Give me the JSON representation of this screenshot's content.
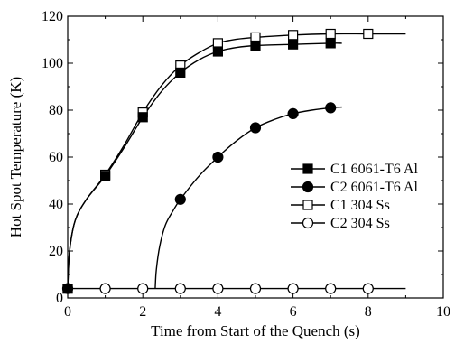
{
  "chart_data": {
    "type": "line",
    "xlabel": "Time from Start of the Quench (s)",
    "ylabel": "Hot Spot Temperature (K)",
    "xlim": [
      0,
      10
    ],
    "ylim": [
      0,
      120
    ],
    "xticks": [
      0,
      2,
      4,
      6,
      8,
      10
    ],
    "yticks": [
      0,
      20,
      40,
      60,
      80,
      100,
      120
    ],
    "grid": false,
    "legend_position": "right-middle",
    "series": [
      {
        "name": "C1 6061-T6 Al",
        "marker": "filled-square",
        "points": [
          [
            0,
            4
          ],
          [
            1,
            52
          ],
          [
            2,
            77
          ],
          [
            3,
            96
          ],
          [
            4,
            105
          ],
          [
            5,
            107.5
          ],
          [
            6,
            108
          ],
          [
            7,
            108.5
          ]
        ],
        "curve": [
          [
            0,
            4
          ],
          [
            0.05,
            20
          ],
          [
            0.2,
            33
          ],
          [
            0.5,
            42
          ],
          [
            1,
            52
          ],
          [
            1.5,
            64
          ],
          [
            2,
            77
          ],
          [
            2.5,
            88
          ],
          [
            3,
            96
          ],
          [
            3.5,
            101.5
          ],
          [
            4,
            105
          ],
          [
            4.5,
            106.7
          ],
          [
            5,
            107.5
          ],
          [
            6,
            108
          ],
          [
            7,
            108.5
          ],
          [
            7.3,
            108.5
          ]
        ]
      },
      {
        "name": "C2 6061-T6 Al",
        "marker": "filled-circle",
        "points": [
          [
            3,
            42
          ],
          [
            4,
            60
          ],
          [
            5,
            72.5
          ],
          [
            6,
            78.5
          ],
          [
            7,
            81
          ]
        ],
        "curve": [
          [
            2.33,
            4
          ],
          [
            2.36,
            12
          ],
          [
            2.45,
            22
          ],
          [
            2.6,
            31
          ],
          [
            2.8,
            37
          ],
          [
            3,
            42
          ],
          [
            3.5,
            52
          ],
          [
            4,
            60
          ],
          [
            4.5,
            67
          ],
          [
            5,
            72.5
          ],
          [
            5.5,
            76
          ],
          [
            6,
            78.5
          ],
          [
            6.5,
            80
          ],
          [
            7,
            81
          ],
          [
            7.3,
            81.3
          ]
        ]
      },
      {
        "name": "C1 304 Ss",
        "marker": "open-square",
        "points": [
          [
            0,
            4
          ],
          [
            1,
            52.5
          ],
          [
            2,
            79
          ],
          [
            3,
            99
          ],
          [
            4,
            108.5
          ],
          [
            5,
            111
          ],
          [
            6,
            112
          ],
          [
            7,
            112.5
          ],
          [
            8,
            112.5
          ]
        ],
        "curve": [
          [
            0,
            4
          ],
          [
            0.05,
            20
          ],
          [
            0.2,
            33
          ],
          [
            0.5,
            42
          ],
          [
            1,
            52.5
          ],
          [
            1.5,
            65
          ],
          [
            2,
            79
          ],
          [
            2.5,
            90.5
          ],
          [
            3,
            99
          ],
          [
            3.5,
            104.5
          ],
          [
            4,
            108.5
          ],
          [
            4.5,
            110.2
          ],
          [
            5,
            111
          ],
          [
            6,
            112
          ],
          [
            7,
            112.5
          ],
          [
            8,
            112.5
          ],
          [
            9,
            112.5
          ]
        ]
      },
      {
        "name": "C2 304 Ss",
        "marker": "open-circle",
        "points": [
          [
            0,
            4
          ],
          [
            1,
            4
          ],
          [
            2,
            4
          ],
          [
            3,
            4
          ],
          [
            4,
            4
          ],
          [
            5,
            4
          ],
          [
            6,
            4
          ],
          [
            7,
            4
          ],
          [
            8,
            4
          ]
        ],
        "curve": [
          [
            0,
            4
          ],
          [
            9,
            4
          ]
        ]
      }
    ]
  }
}
